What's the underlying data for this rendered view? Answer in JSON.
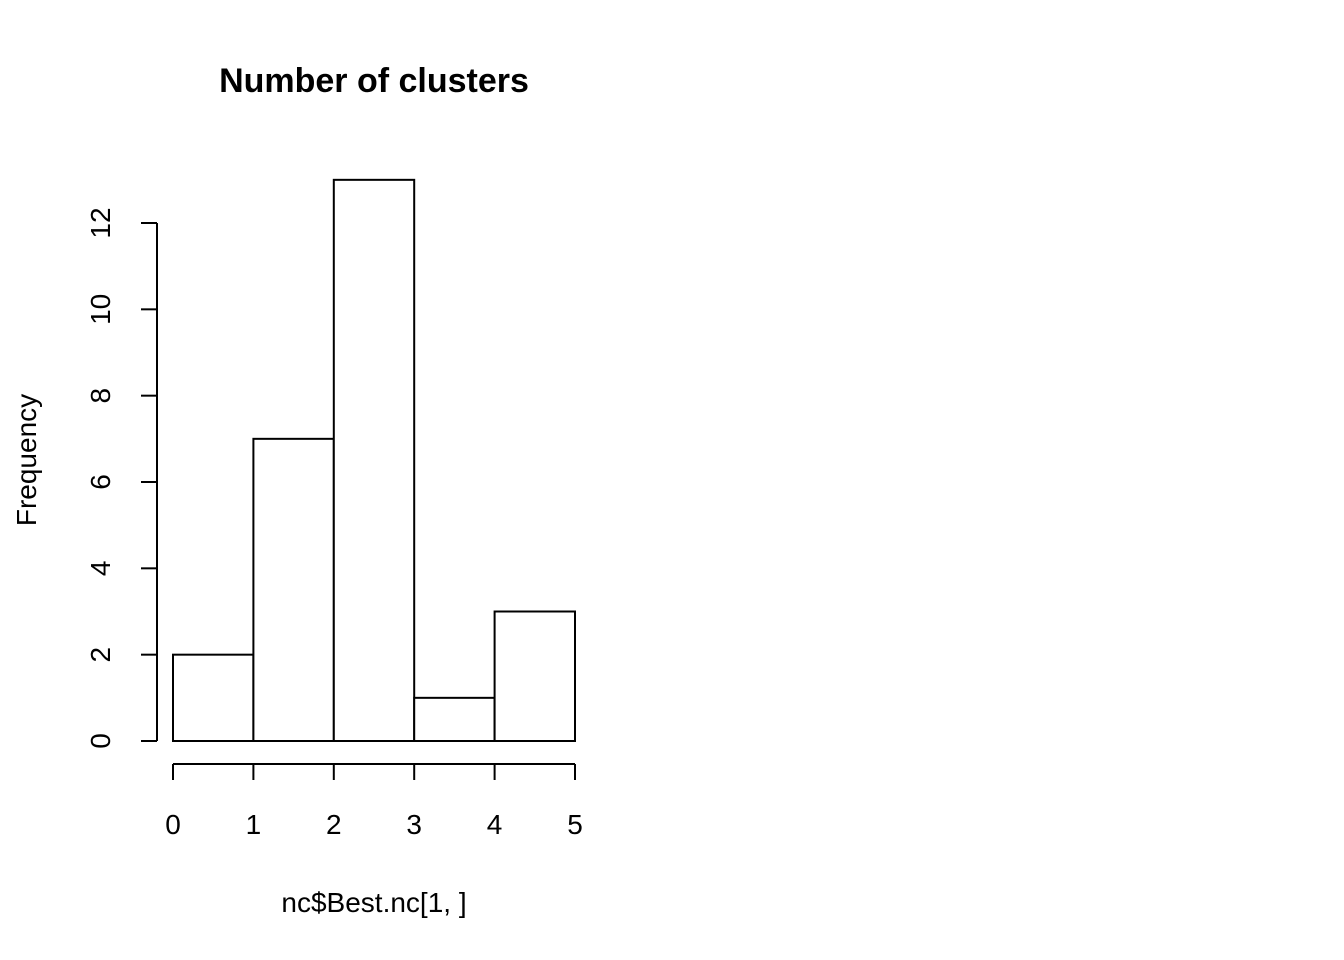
{
  "chart_data": {
    "type": "bar",
    "title": "Number of clusters",
    "xlabel": "nc$Best.nc[1, ]",
    "ylabel": "Frequency",
    "bins": [
      {
        "from": 0,
        "to": 1,
        "count": 2
      },
      {
        "from": 1,
        "to": 2,
        "count": 7
      },
      {
        "from": 2,
        "to": 3,
        "count": 13
      },
      {
        "from": 3,
        "to": 4,
        "count": 1
      },
      {
        "from": 4,
        "to": 5,
        "count": 3
      }
    ],
    "xlim": [
      0,
      5
    ],
    "ylim": [
      0,
      13
    ],
    "x_ticks": [
      "0",
      "1",
      "2",
      "3",
      "4",
      "5"
    ],
    "y_ticks": [
      "0",
      "2",
      "4",
      "6",
      "8",
      "10",
      "12"
    ],
    "grid": false,
    "colors": {
      "bar_fill": "#ffffff",
      "bar_stroke": "#000000"
    }
  }
}
